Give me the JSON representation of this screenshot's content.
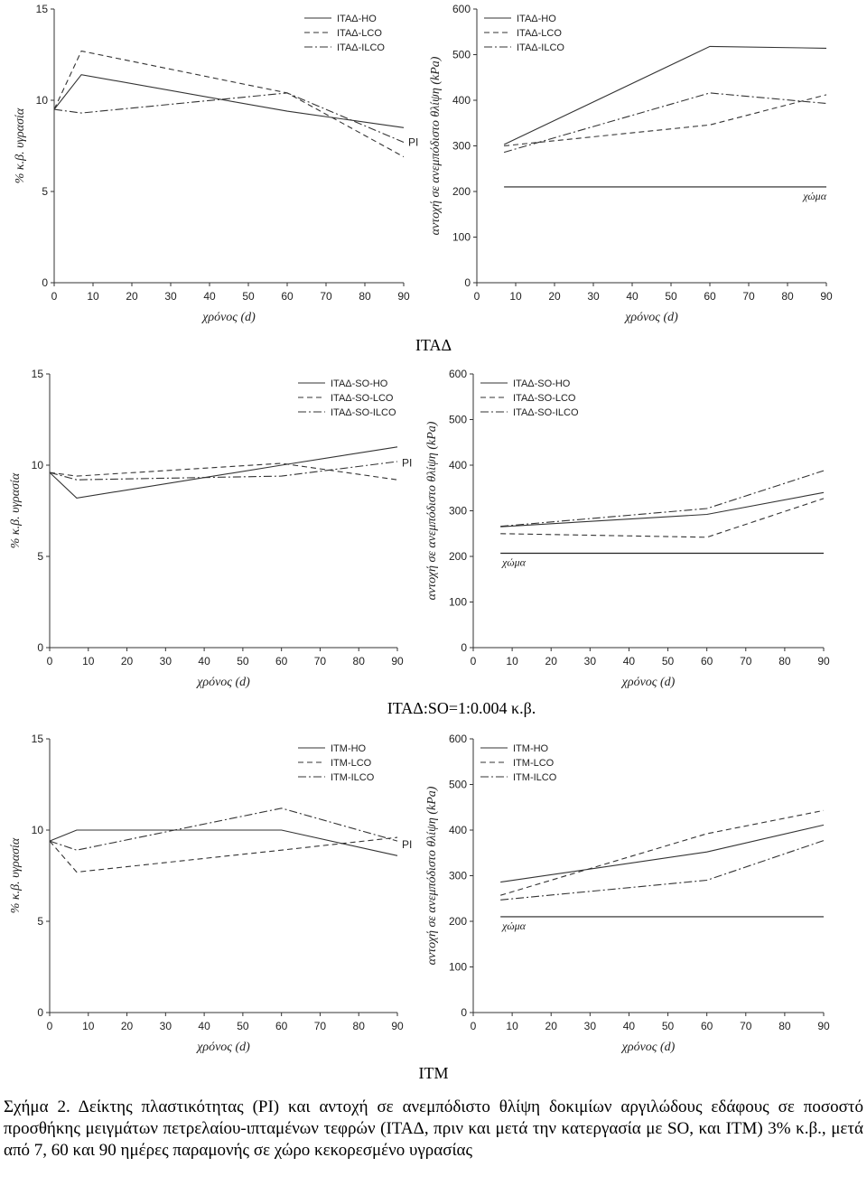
{
  "group_labels": [
    "ΙΤΑΔ",
    "ΙΤΑΔ:SO=1:0.004 κ.β.",
    "ΙΤΜ"
  ],
  "caption": "Σχήμα 2. Δείκτης πλαστικότητας (PI) και αντοχή σε ανεμπόδιστο θλίψη δοκιμίων αργιλώδους εδάφους σε ποσοστό προσθήκης μειγμάτων πετρελαίου-ιπταμένων τεφρών (ΙΤΑΔ, πριν και μετά την κατεργασία με SO, και ΙΤΜ) 3% κ.β., μετά από 7, 60 και 90 ημέρες παραμονής σε χώρο κεκορεσμένο υγρασίας",
  "chart_data": [
    {
      "type": "line",
      "xlabel": "χρόνος (d)",
      "ylabel": "% κ.β. υγρασία",
      "xlim": [
        0,
        90
      ],
      "ylim": [
        0,
        15
      ],
      "xticks": [
        0,
        10,
        20,
        30,
        40,
        50,
        60,
        70,
        80,
        90
      ],
      "yticks": [
        0,
        5,
        10,
        15
      ],
      "legend_position": "top-right",
      "annotation": "PI",
      "series": [
        {
          "name": "ΙΤΑΔ-HO",
          "style": "solid",
          "x": [
            0,
            7,
            60,
            90
          ],
          "y": [
            9.5,
            11.4,
            9.4,
            8.5
          ]
        },
        {
          "name": "ΙΤΑΔ-LCO",
          "style": "dashed",
          "x": [
            0,
            7,
            60,
            90
          ],
          "y": [
            9.5,
            12.7,
            10.4,
            6.9
          ]
        },
        {
          "name": "ΙΤΑΔ-ILCO",
          "style": "dashdot",
          "x": [
            0,
            7,
            60,
            90
          ],
          "y": [
            9.5,
            9.3,
            10.4,
            7.7
          ]
        }
      ]
    },
    {
      "type": "line",
      "xlabel": "χρόνος (d)",
      "ylabel": "αντοχή σε ανεμπόδιστο θλίψη (kPa)",
      "xlim": [
        0,
        90
      ],
      "ylim": [
        0,
        600
      ],
      "xticks": [
        0,
        10,
        20,
        30,
        40,
        50,
        60,
        70,
        80,
        90
      ],
      "yticks": [
        0,
        100,
        200,
        300,
        400,
        500,
        600
      ],
      "legend_position": "top-left",
      "reference": {
        "label": "χώμα",
        "y": 210
      },
      "series": [
        {
          "name": "ΙΤΑΔ-HO",
          "style": "solid",
          "x": [
            7,
            60,
            90
          ],
          "y": [
            303,
            518,
            514
          ]
        },
        {
          "name": "ΙΤΑΔ-LCO",
          "style": "dashed",
          "x": [
            7,
            60,
            90
          ],
          "y": [
            300,
            346,
            412
          ]
        },
        {
          "name": "ΙΤΑΔ-ILCO",
          "style": "dashdot",
          "x": [
            7,
            60,
            90
          ],
          "y": [
            286,
            416,
            393
          ]
        }
      ]
    },
    {
      "type": "line",
      "xlabel": "χρόνος (d)",
      "ylabel": "% κ.β. υγρασία",
      "xlim": [
        0,
        90
      ],
      "ylim": [
        0,
        15
      ],
      "xticks": [
        0,
        10,
        20,
        30,
        40,
        50,
        60,
        70,
        80,
        90
      ],
      "yticks": [
        0,
        5,
        10,
        15
      ],
      "legend_position": "top-right",
      "annotation": "PI",
      "series": [
        {
          "name": "ΙΤΑΔ-SO-HO",
          "style": "solid",
          "x": [
            0,
            7,
            60,
            90
          ],
          "y": [
            9.6,
            8.2,
            10.0,
            11.0
          ]
        },
        {
          "name": "ΙΤΑΔ-SO-LCO",
          "style": "dashed",
          "x": [
            0,
            7,
            60,
            90
          ],
          "y": [
            9.6,
            9.4,
            10.1,
            9.2
          ]
        },
        {
          "name": "ΙΤΑΔ-SO-ILCO",
          "style": "dashdot",
          "x": [
            0,
            7,
            60,
            90
          ],
          "y": [
            9.6,
            9.2,
            9.4,
            10.2
          ]
        }
      ]
    },
    {
      "type": "line",
      "xlabel": "χρόνος (d)",
      "ylabel": "αντοχή σε ανεμπόδιστο θλίψη (kPa)",
      "xlim": [
        0,
        90
      ],
      "ylim": [
        0,
        600
      ],
      "xticks": [
        0,
        10,
        20,
        30,
        40,
        50,
        60,
        70,
        80,
        90
      ],
      "yticks": [
        0,
        100,
        200,
        300,
        400,
        500,
        600
      ],
      "legend_position": "top-left",
      "reference": {
        "label": "χώμα",
        "y": 207
      },
      "series": [
        {
          "name": "ΙΤΑΔ-SO-HO",
          "style": "solid",
          "x": [
            7,
            60,
            90
          ],
          "y": [
            265,
            292,
            340
          ]
        },
        {
          "name": "ΙΤΑΔ-SO-LCO",
          "style": "dashed",
          "x": [
            7,
            60,
            90
          ],
          "y": [
            250,
            242,
            327
          ]
        },
        {
          "name": "ΙΤΑΔ-SO-ILCO",
          "style": "dashdot",
          "x": [
            7,
            60,
            90
          ],
          "y": [
            266,
            305,
            388
          ]
        }
      ]
    },
    {
      "type": "line",
      "xlabel": "χρόνος (d)",
      "ylabel": "% κ.β. υγρασία",
      "xlim": [
        0,
        90
      ],
      "ylim": [
        0,
        15
      ],
      "xticks": [
        0,
        10,
        20,
        30,
        40,
        50,
        60,
        70,
        80,
        90
      ],
      "yticks": [
        0,
        5,
        10,
        15
      ],
      "legend_position": "top-right",
      "annotation": "PI",
      "series": [
        {
          "name": "ΙΤΜ-HO",
          "style": "solid",
          "x": [
            0,
            7,
            60,
            90
          ],
          "y": [
            9.4,
            10.0,
            10.0,
            8.6
          ]
        },
        {
          "name": "ΙΤΜ-LCO",
          "style": "dashed",
          "x": [
            0,
            7,
            60,
            90
          ],
          "y": [
            9.4,
            7.7,
            8.9,
            9.6
          ]
        },
        {
          "name": "ΙΤΜ-ILCO",
          "style": "dashdot",
          "x": [
            0,
            7,
            60,
            90
          ],
          "y": [
            9.4,
            8.9,
            11.2,
            9.4
          ]
        }
      ]
    },
    {
      "type": "line",
      "xlabel": "χρόνος (d)",
      "ylabel": "αντοχή σε ανεμπόδιστο θλίψη (kPa)",
      "xlim": [
        0,
        90
      ],
      "ylim": [
        0,
        600
      ],
      "xticks": [
        0,
        10,
        20,
        30,
        40,
        50,
        60,
        70,
        80,
        90
      ],
      "yticks": [
        0,
        100,
        200,
        300,
        400,
        500,
        600
      ],
      "legend_position": "top-left",
      "reference": {
        "label": "χώμα",
        "y": 210
      },
      "series": [
        {
          "name": "ΙΤΜ-HO",
          "style": "solid",
          "x": [
            7,
            60,
            90
          ],
          "y": [
            286,
            352,
            411
          ]
        },
        {
          "name": "ΙΤΜ-LCO",
          "style": "dashed",
          "x": [
            7,
            60,
            90
          ],
          "y": [
            257,
            392,
            443
          ]
        },
        {
          "name": "ΙΤΜ-ILCO",
          "style": "dashdot",
          "x": [
            7,
            60,
            90
          ],
          "y": [
            247,
            290,
            377
          ]
        }
      ]
    }
  ]
}
